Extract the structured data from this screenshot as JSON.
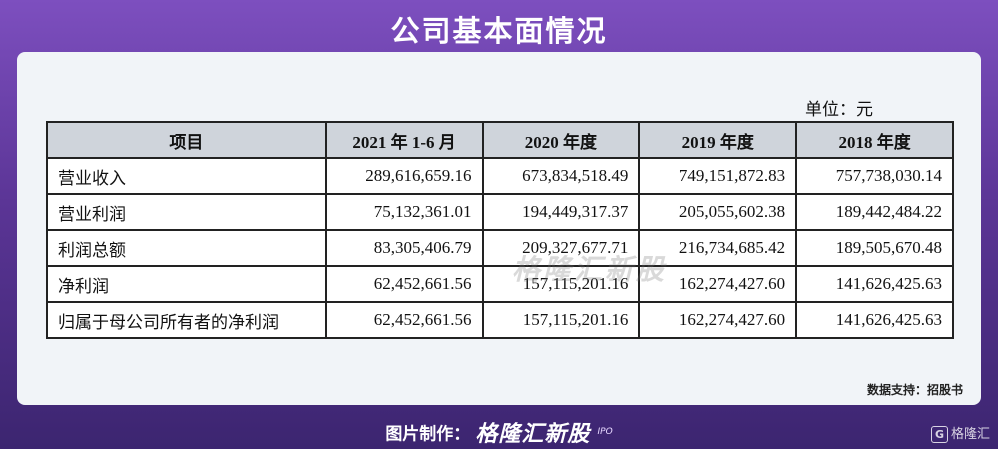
{
  "title": "公司基本面情况",
  "unit": "单位：元",
  "table": {
    "headers": [
      "项目",
      "2021 年 1-6 月",
      "2020 年度",
      "2019 年度",
      "2018 年度"
    ],
    "rows": [
      [
        "营业收入",
        "289,616,659.16",
        "673,834,518.49",
        "749,151,872.83",
        "757,738,030.14"
      ],
      [
        "营业利润",
        "75,132,361.01",
        "194,449,317.37",
        "205,055,602.38",
        "189,442,484.22"
      ],
      [
        "利润总额",
        "83,305,406.79",
        "209,327,677.71",
        "216,734,685.42",
        "189,505,670.48"
      ],
      [
        "净利润",
        "62,452,661.56",
        "157,115,201.16",
        "162,274,427.60",
        "141,626,425.63"
      ],
      [
        "归属于母公司所有者的净利润",
        "62,452,661.56",
        "157,115,201.16",
        "162,274,427.60",
        "141,626,425.63"
      ]
    ]
  },
  "watermark": "格隆汇新股",
  "source": "数据支持：招股书",
  "footer": {
    "label": "图片制作：",
    "brand": "格隆汇新股",
    "ipo": "IPO"
  },
  "corner": {
    "icon": "G",
    "text": "格隆汇"
  }
}
